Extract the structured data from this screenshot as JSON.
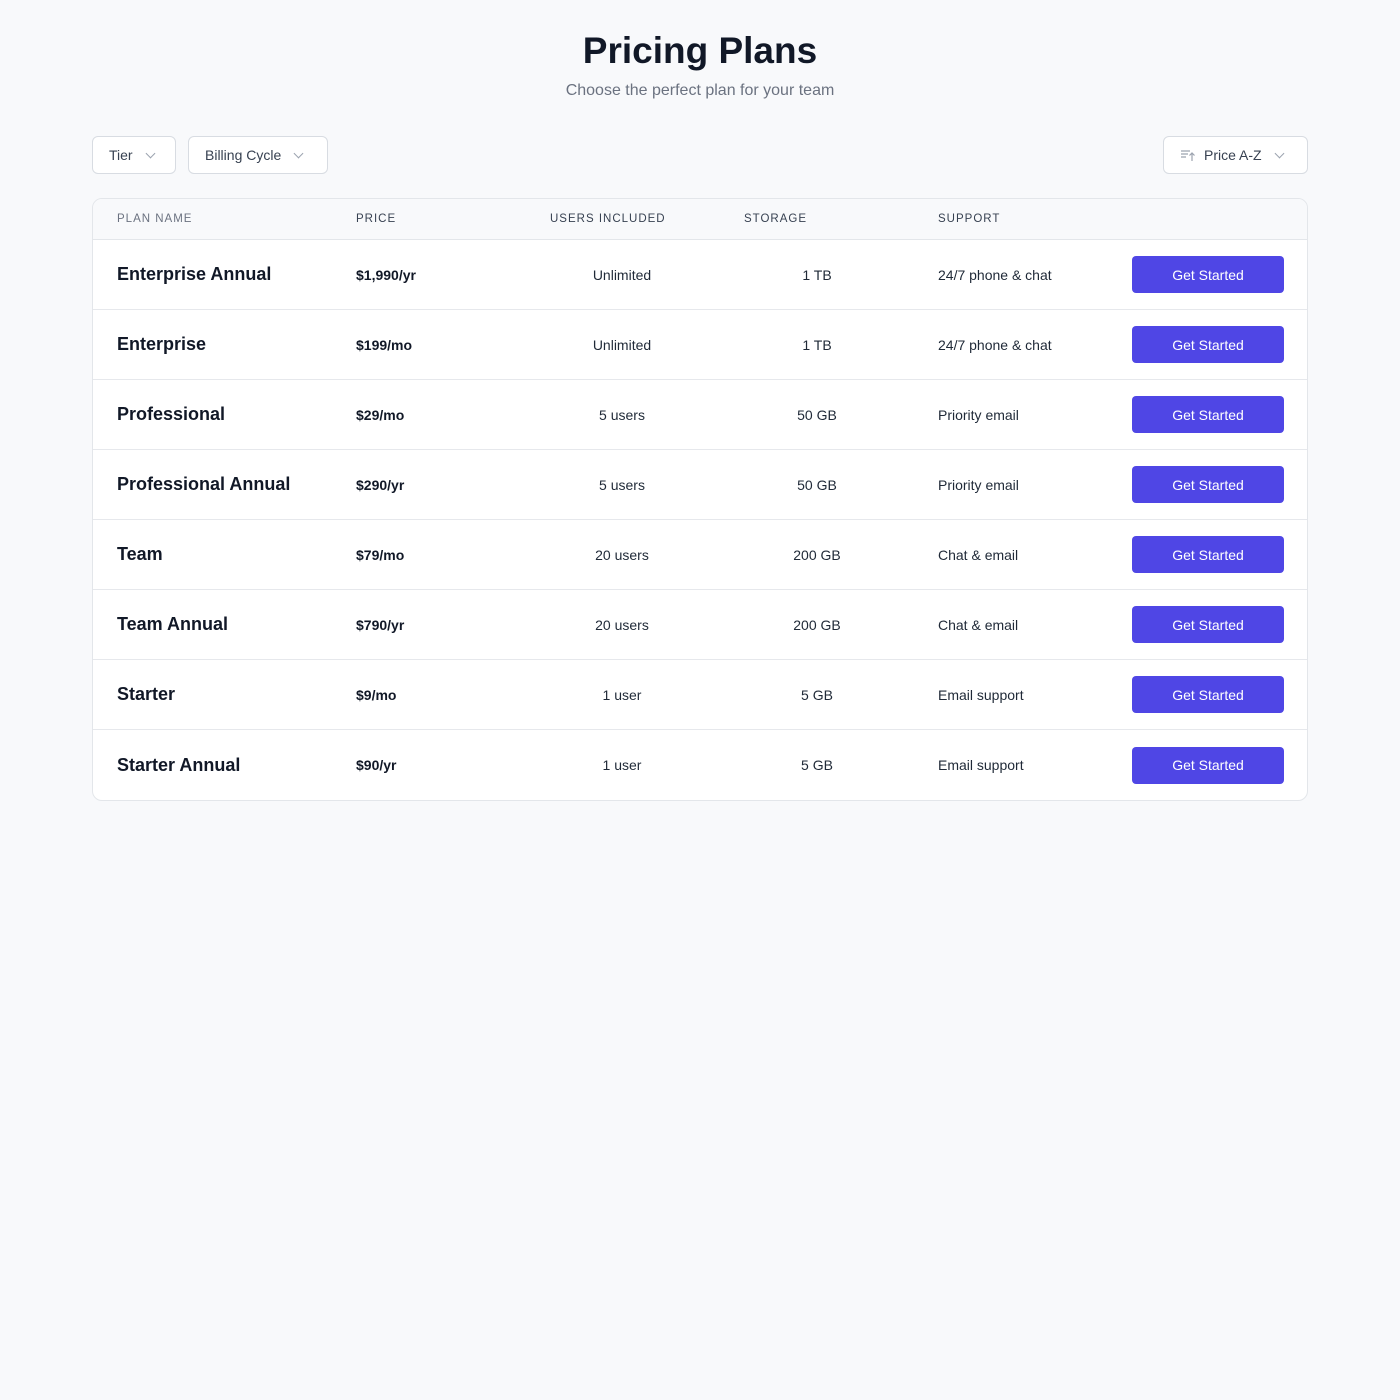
{
  "header": {
    "title": "Pricing Plans",
    "subtitle": "Choose the perfect plan for your team"
  },
  "filters": {
    "tier": "Tier",
    "billing": "Billing Cycle",
    "sort": "Price A-Z"
  },
  "table": {
    "columns": [
      "PLAN NAME",
      "PRICE",
      "USERS INCLUDED",
      "STORAGE",
      "SUPPORT"
    ],
    "rows": [
      {
        "name": "Enterprise Annual",
        "price": "$1,990/yr",
        "users": "Unlimited",
        "storage": "1 TB",
        "support": "24/7 phone & chat",
        "cta": "Get Started"
      },
      {
        "name": "Enterprise",
        "price": "$199/mo",
        "users": "Unlimited",
        "storage": "1 TB",
        "support": "24/7 phone & chat",
        "cta": "Get Started"
      },
      {
        "name": "Professional",
        "price": "$29/mo",
        "users": "5 users",
        "storage": "50 GB",
        "support": "Priority email",
        "cta": "Get Started"
      },
      {
        "name": "Professional Annual",
        "price": "$290/yr",
        "users": "5 users",
        "storage": "50 GB",
        "support": "Priority email",
        "cta": "Get Started"
      },
      {
        "name": "Team",
        "price": "$79/mo",
        "users": "20 users",
        "storage": "200 GB",
        "support": "Chat & email",
        "cta": "Get Started"
      },
      {
        "name": "Team Annual",
        "price": "$790/yr",
        "users": "20 users",
        "storage": "200 GB",
        "support": "Chat & email",
        "cta": "Get Started"
      },
      {
        "name": "Starter",
        "price": "$9/mo",
        "users": "1 user",
        "storage": "5 GB",
        "support": "Email support",
        "cta": "Get Started"
      },
      {
        "name": "Starter Annual",
        "price": "$90/yr",
        "users": "1 user",
        "storage": "5 GB",
        "support": "Email support",
        "cta": "Get Started"
      }
    ]
  },
  "colors": {
    "accent": "#4f46e5"
  }
}
